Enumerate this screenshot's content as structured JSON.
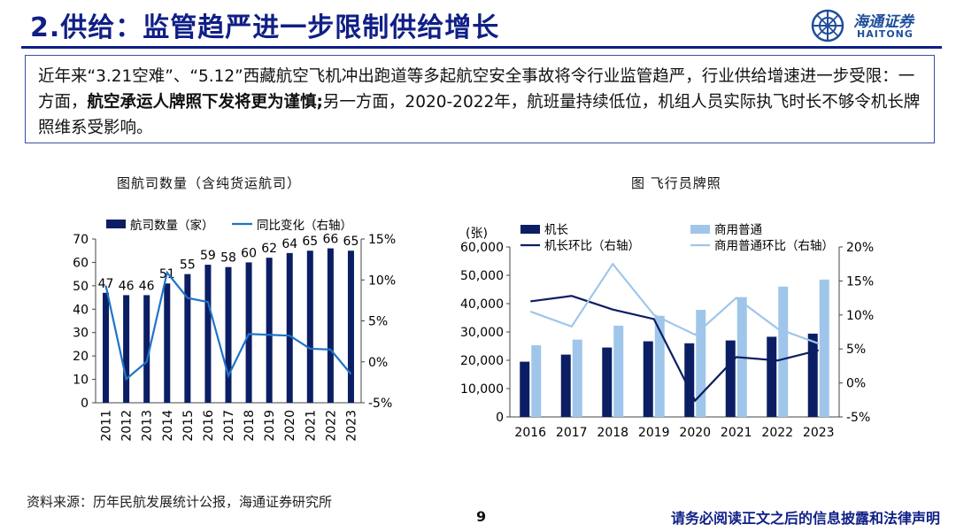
{
  "header": {
    "title": "2.供给：监管趋严进一步限制供给增长",
    "logo_cn": "海通证券",
    "logo_en": "HAITONG"
  },
  "summary": {
    "part1": "近年来“3.21空难”、“5.12”西藏航空飞机冲出跑道等多起航空安全事故将令行业监管趋严，行业供给增速进一步受限：一方面，",
    "bold": "航空承运人牌照下发将更为谨慎;",
    "part2": "另一方面，2020-2022年，航班量持续低位，机组人员实际执飞时长不够令机长牌照维系受影响。"
  },
  "footer": {
    "source": "资料来源：历年民航发展统计公报，海通证券研究所",
    "page": "9",
    "disclaimer": "请务必阅读正文之后的信息披露和法律声明"
  },
  "colors": {
    "navy": "#0c1e63",
    "blue": "#1e73c9",
    "light_blue": "#9fc6ea",
    "title_blue": "#0f1f86"
  },
  "chart_data": [
    {
      "type": "bar",
      "title": "图航司数量（含纯货运航司）",
      "categories": [
        "2011",
        "2012",
        "2013",
        "2014",
        "2015",
        "2016",
        "2017",
        "2018",
        "2019",
        "2020",
        "2021",
        "2022",
        "2023"
      ],
      "series": [
        {
          "name": "航司数量（家）",
          "kind": "bar",
          "axis": "left",
          "values": [
            47,
            46,
            46,
            51,
            55,
            59,
            58,
            60,
            62,
            64,
            65,
            66,
            65
          ]
        },
        {
          "name": "同比变化（右轴）",
          "kind": "line",
          "axis": "right",
          "values": [
            9.3,
            -2.1,
            0.0,
            10.9,
            7.8,
            7.3,
            -1.7,
            3.4,
            3.3,
            3.2,
            1.6,
            1.5,
            -1.5
          ]
        }
      ],
      "ylim": [
        0,
        70
      ],
      "yticks": [
        "0",
        "10",
        "20",
        "30",
        "40",
        "50",
        "60",
        "70"
      ],
      "y2lim": [
        -5,
        15
      ],
      "y2ticks": [
        "-5%",
        "0%",
        "5%",
        "10%",
        "15%"
      ],
      "data_labels": [
        "47",
        "46",
        "46",
        "51",
        "55",
        "59",
        "58",
        "60",
        "62",
        "64",
        "65",
        "66",
        "65"
      ],
      "legend": "top"
    },
    {
      "type": "bar",
      "title": "图 飞行员牌照",
      "ylabel": "(张)",
      "categories": [
        "2016",
        "2017",
        "2018",
        "2019",
        "2020",
        "2021",
        "2022",
        "2023"
      ],
      "series": [
        {
          "name": "机长",
          "kind": "bar",
          "axis": "left",
          "values": [
            19500,
            22000,
            24500,
            26700,
            26000,
            27000,
            28300,
            29400
          ]
        },
        {
          "name": "商用普通",
          "kind": "bar",
          "axis": "left",
          "values": [
            25300,
            27300,
            32200,
            35700,
            37800,
            42300,
            46000,
            48500
          ]
        },
        {
          "name": "机长环比（右轴）",
          "kind": "line",
          "axis": "right",
          "values": [
            12.0,
            12.8,
            10.8,
            9.4,
            -2.6,
            3.8,
            3.3,
            4.8
          ]
        },
        {
          "name": "商用普通环比（右轴）",
          "kind": "line",
          "axis": "right",
          "values": [
            10.5,
            8.3,
            17.5,
            10.0,
            7.1,
            12.5,
            8.0,
            5.8
          ]
        }
      ],
      "ylim": [
        0,
        60000
      ],
      "yticks": [
        "0",
        "10,000",
        "20,000",
        "30,000",
        "40,000",
        "50,000",
        "60,000"
      ],
      "y2lim": [
        -5,
        20
      ],
      "y2ticks": [
        "-5%",
        "0%",
        "5%",
        "10%",
        "15%",
        "20%"
      ],
      "legend": "top"
    }
  ]
}
